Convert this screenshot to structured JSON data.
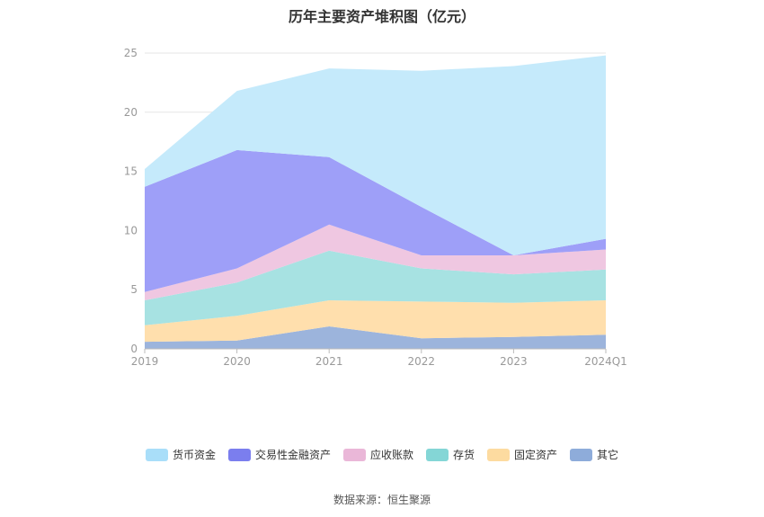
{
  "chart_data": {
    "type": "area",
    "stacked": true,
    "title": "历年主要资产堆积图（亿元）",
    "categories": [
      "2019",
      "2020",
      "2021",
      "2022",
      "2023",
      "2024Q1"
    ],
    "ylim": [
      0,
      25
    ],
    "yticks": [
      0,
      5,
      10,
      15,
      20,
      25
    ],
    "grid": true,
    "legend_position": "bottom",
    "series": [
      {
        "name": "其它",
        "color": "#9cb4dc",
        "values": [
          0.6,
          0.7,
          1.9,
          0.9,
          1.0,
          1.2
        ]
      },
      {
        "name": "固定资产",
        "color": "#ffdfad",
        "values": [
          1.4,
          2.1,
          2.2,
          3.1,
          2.9,
          2.9
        ]
      },
      {
        "name": "存货",
        "color": "#a7e2e2",
        "values": [
          2.1,
          2.8,
          4.2,
          2.8,
          2.4,
          2.6
        ]
      },
      {
        "name": "应收账款",
        "color": "#efc7e1",
        "values": [
          0.7,
          1.2,
          2.2,
          1.1,
          1.6,
          1.7
        ]
      },
      {
        "name": "交易性金融资产",
        "color": "#9e9ff8",
        "values": [
          8.9,
          10.0,
          5.7,
          4.1,
          0.0,
          0.9
        ]
      },
      {
        "name": "货币资金",
        "color": "#c5eafb",
        "values": [
          1.5,
          5.0,
          7.5,
          11.5,
          16.0,
          15.5
        ]
      }
    ]
  },
  "legend": [
    {
      "name": "货币资金",
      "color": "#a9def9"
    },
    {
      "name": "交易性金融资产",
      "color": "#7b7eee"
    },
    {
      "name": "应收账款",
      "color": "#eab7d8"
    },
    {
      "name": "存货",
      "color": "#84d6d6"
    },
    {
      "name": "固定资产",
      "color": "#fddba0"
    },
    {
      "name": "其它",
      "color": "#8eacda"
    }
  ],
  "source": "数据来源：恒生聚源"
}
